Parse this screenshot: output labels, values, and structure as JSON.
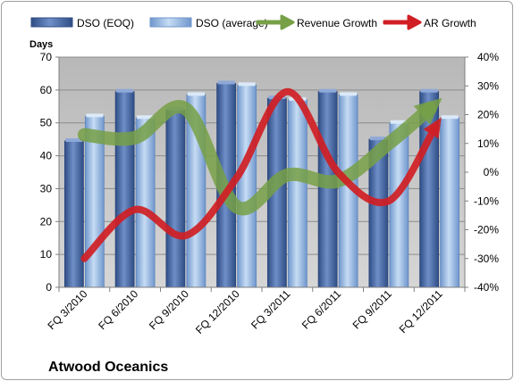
{
  "chart_data": {
    "type": "bar",
    "title": "",
    "company_label": "Atwood Oceanics",
    "y_left_label": "Days",
    "y_left_lim": [
      0,
      70
    ],
    "y_left_ticks": [
      "0",
      "10",
      "20",
      "30",
      "40",
      "50",
      "60",
      "70"
    ],
    "y_right_lim": [
      -40,
      40
    ],
    "y_right_ticks": [
      "-40%",
      "-30%",
      "-20%",
      "-10%",
      "0%",
      "10%",
      "20%",
      "30%",
      "40%"
    ],
    "categories": [
      "FQ 3/2010",
      "FQ 6/2010",
      "FQ 9/2010",
      "FQ 12/2010",
      "FQ 3/2011",
      "FQ 6/2011",
      "FQ 9/2011",
      "FQ 12/2011"
    ],
    "bar_series": [
      {
        "name": "DSO (EOQ)",
        "values": [
          44.5,
          59.5,
          54,
          62,
          57.5,
          59.5,
          45,
          59.5
        ]
      },
      {
        "name": "DSO (average)",
        "values": [
          52,
          51.5,
          58.5,
          61.5,
          57,
          58.5,
          50,
          51.5
        ]
      }
    ],
    "line_series": [
      {
        "name": "Revenue Growth",
        "axis": "right",
        "values": [
          13,
          12,
          22,
          -12,
          -1,
          -3,
          10,
          25
        ]
      },
      {
        "name": "AR Growth",
        "axis": "right",
        "values": [
          -30,
          -13,
          -22,
          -2,
          28,
          0,
          -10,
          18
        ]
      }
    ],
    "grid": true,
    "legend_position": "top",
    "colors": {
      "dso_eoq": "#4f6fa8",
      "dso_average": "#8fb4e0",
      "revenue_growth": "#77a047",
      "ar_growth": "#d01e24",
      "plot_background": "#bfbfbf"
    }
  }
}
